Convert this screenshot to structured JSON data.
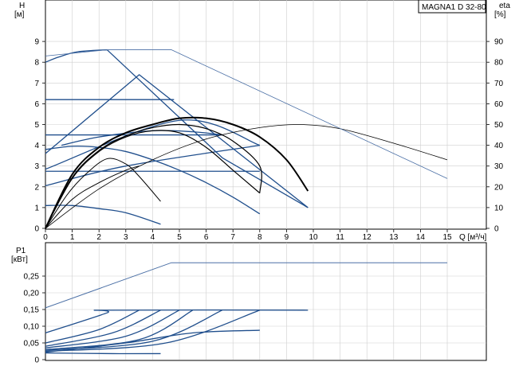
{
  "chart_data": [
    {
      "type": "line",
      "title": "MAGNA1 D 32-80",
      "xlabel": "Q [м³/ч]",
      "ylabel": "H [м]",
      "y2label": "eta [%]",
      "xlim": [
        0,
        15
      ],
      "ylim": [
        0,
        10
      ],
      "y2lim": [
        0,
        100
      ],
      "x_ticks": [
        0,
        1,
        2,
        3,
        4,
        5,
        6,
        7,
        8,
        9,
        10,
        11,
        12,
        13,
        14,
        15
      ],
      "y_ticks": [
        0,
        1,
        2,
        3,
        4,
        5,
        6,
        7,
        8,
        9
      ],
      "y2_ticks": [
        0,
        10,
        20,
        30,
        40,
        50,
        60,
        70,
        80,
        90
      ],
      "grid": true,
      "series": [
        {
          "role": "max-curve",
          "color": "#1f4e8c",
          "points": [
            [
              0,
              8.0
            ],
            [
              0.5,
              8.25
            ],
            [
              1.2,
              8.5
            ],
            [
              2.3,
              8.6
            ]
          ]
        },
        {
          "role": "proportional-max",
          "color": "#1f4e8c",
          "points": [
            [
              2.3,
              8.6
            ],
            [
              6.6,
              3.4
            ],
            [
              9.8,
              1.0
            ]
          ]
        },
        {
          "role": "proportional-upper",
          "color": "#1f4e8c",
          "points": [
            [
              0,
              3.6
            ],
            [
              3.5,
              7.4
            ],
            [
              9.8,
              1.0
            ]
          ]
        },
        {
          "role": "const-pressure",
          "color": "#1f4e8c",
          "points": [
            [
              0,
              6.2
            ],
            [
              4.8,
              6.2
            ]
          ]
        },
        {
          "role": "const-pressure",
          "color": "#1f4e8c",
          "points": [
            [
              0,
              4.5
            ],
            [
              6.6,
              4.5
            ]
          ]
        },
        {
          "role": "const-pressure",
          "color": "#1f4e8c",
          "points": [
            [
              0,
              2.75
            ],
            [
              8.0,
              2.75
            ]
          ]
        },
        {
          "role": "prop-low",
          "color": "#1f4e8c",
          "points": [
            [
              0,
              2.85
            ],
            [
              5.0,
              5.2
            ],
            [
              8.0,
              4.0
            ]
          ]
        },
        {
          "role": "prop-low",
          "color": "#1f4e8c",
          "points": [
            [
              0,
              2.05
            ],
            [
              3.0,
              3.0
            ],
            [
              8.0,
              4.0
            ]
          ]
        },
        {
          "role": "const-curve",
          "color": "#1f4e8c",
          "points": [
            [
              0,
              3.8
            ],
            [
              1.0,
              3.95
            ],
            [
              2.0,
              3.9
            ],
            [
              3.0,
              3.7
            ],
            [
              4.0,
              3.3
            ],
            [
              5.0,
              2.8
            ],
            [
              6.0,
              2.2
            ],
            [
              7.0,
              1.5
            ],
            [
              8.0,
              0.7
            ]
          ]
        },
        {
          "role": "const-curve",
          "color": "#1f4e8c",
          "points": [
            [
              0,
              1.1
            ],
            [
              1.0,
              1.1
            ],
            [
              2.0,
              0.95
            ],
            [
              3.0,
              0.75
            ],
            [
              4.3,
              0.2
            ]
          ]
        },
        {
          "role": "const-curve",
          "color": "#1f4e8c",
          "points": [
            [
              0.6,
              4.0
            ],
            [
              2.0,
              4.4
            ],
            [
              4.0,
              4.7
            ],
            [
              5.5,
              4.65
            ],
            [
              6.6,
              4.5
            ]
          ]
        },
        {
          "role": "duty",
          "color": "#000000",
          "width": 2,
          "points": [
            [
              0,
              0
            ],
            [
              1.0,
              2.6
            ],
            [
              2.0,
              3.9
            ],
            [
              3.0,
              4.6
            ],
            [
              4.0,
              5.0
            ],
            [
              5.0,
              5.3
            ],
            [
              6.0,
              5.3
            ],
            [
              7.0,
              5.0
            ],
            [
              8.0,
              4.4
            ],
            [
              9.0,
              3.3
            ],
            [
              9.8,
              1.8
            ]
          ]
        },
        {
          "role": "duty",
          "color": "#000000",
          "width": 1.2,
          "points": [
            [
              0,
              0
            ],
            [
              1.0,
              2.45
            ],
            [
              2.0,
              3.75
            ],
            [
              3.0,
              4.45
            ],
            [
              4.0,
              4.85
            ],
            [
              5.0,
              5.0
            ],
            [
              6.0,
              4.8
            ],
            [
              7.0,
              4.2
            ],
            [
              8.0,
              3.0
            ],
            [
              8.0,
              1.7
            ]
          ]
        },
        {
          "role": "duty",
          "color": "#000000",
          "width": 1.2,
          "points": [
            [
              0,
              0
            ],
            [
              1.0,
              2.4
            ],
            [
              2.0,
              3.7
            ],
            [
              3.0,
              4.4
            ],
            [
              4.0,
              4.7
            ],
            [
              5.0,
              4.6
            ],
            [
              6.0,
              3.9
            ],
            [
              7.0,
              2.8
            ],
            [
              8.0,
              1.7
            ]
          ]
        },
        {
          "role": "duty",
          "color": "#000000",
          "width": 1,
          "points": [
            [
              0,
              0
            ],
            [
              0.8,
              1.6
            ],
            [
              1.5,
              2.6
            ],
            [
              2.3,
              3.35
            ],
            [
              3.0,
              3.1
            ],
            [
              3.5,
              2.5
            ],
            [
              4.3,
              1.3
            ]
          ]
        },
        {
          "role": "duty",
          "color": "#000000",
          "width": 1,
          "points": [
            [
              0,
              0
            ],
            [
              1.0,
              1.4
            ],
            [
              2.0,
              2.2
            ],
            [
              3.0,
              2.8
            ],
            [
              3.5,
              3.0
            ]
          ]
        },
        {
          "role": "eta",
          "color": "#000000",
          "width": 0.8,
          "points": [
            [
              0,
              0
            ],
            [
              2.0,
              1.9
            ],
            [
              4.0,
              3.3
            ],
            [
              6.0,
              4.3
            ],
            [
              8.0,
              4.85
            ],
            [
              9.5,
              5.0
            ],
            [
              11.0,
              4.8
            ],
            [
              13.0,
              4.1
            ],
            [
              15.0,
              3.3
            ]
          ]
        },
        {
          "role": "eta-envelope",
          "color": "#4a6fa5",
          "width": 0.8,
          "points": [
            [
              0,
              8.3
            ],
            [
              2.3,
              8.6
            ],
            [
              4.7,
              8.6
            ],
            [
              15.0,
              2.4
            ]
          ]
        }
      ]
    },
    {
      "type": "line",
      "xlabel": "",
      "ylabel": "P1 [кВт]",
      "xlim": [
        0,
        15
      ],
      "ylim": [
        0,
        0.35
      ],
      "y_ticks": [
        "0",
        "0,05",
        "0,10",
        "0,15",
        "0,20",
        "0,25"
      ],
      "grid": true,
      "series": [
        {
          "role": "max-power",
          "color": "#4a6fa5",
          "width": 1,
          "points": [
            [
              0,
              0.155
            ],
            [
              4.7,
              0.29
            ],
            [
              15.0,
              0.29
            ]
          ]
        },
        {
          "role": "power",
          "color": "#1f4e8c",
          "points": [
            [
              0,
              0.08
            ],
            [
              2.3,
              0.14
            ],
            [
              2.3,
              0.148
            ],
            [
              9.8,
              0.148
            ]
          ]
        },
        {
          "role": "power",
          "color": "#1f4e8c",
          "points": [
            [
              0,
              0.05
            ],
            [
              2.0,
              0.09
            ],
            [
              3.5,
              0.148
            ]
          ]
        },
        {
          "role": "power",
          "color": "#1f4e8c",
          "points": [
            [
              0,
              0.04
            ],
            [
              2.5,
              0.08
            ],
            [
              4.3,
              0.148
            ]
          ]
        },
        {
          "role": "power",
          "color": "#1f4e8c",
          "points": [
            [
              0,
              0.035
            ],
            [
              3.0,
              0.07
            ],
            [
              5.0,
              0.148
            ]
          ]
        },
        {
          "role": "power",
          "color": "#1f4e8c",
          "points": [
            [
              0,
              0.03
            ],
            [
              3.5,
              0.06
            ],
            [
              5.5,
              0.148
            ]
          ]
        },
        {
          "role": "power",
          "color": "#1f4e8c",
          "points": [
            [
              0,
              0.028
            ],
            [
              4.0,
              0.055
            ],
            [
              6.6,
              0.148
            ]
          ]
        },
        {
          "role": "power",
          "color": "#1f4e8c",
          "points": [
            [
              0,
              0.025
            ],
            [
              4.5,
              0.05
            ],
            [
              8.0,
              0.148
            ]
          ]
        },
        {
          "role": "power",
          "color": "#1f4e8c",
          "points": [
            [
              0,
              0.022
            ],
            [
              3.0,
              0.05
            ],
            [
              5.5,
              0.08
            ],
            [
              8.0,
              0.088
            ]
          ]
        },
        {
          "role": "power",
          "color": "#1f4e8c",
          "points": [
            [
              0,
              0.02
            ],
            [
              2.5,
              0.018
            ],
            [
              4.3,
              0.018
            ]
          ]
        }
      ]
    }
  ]
}
